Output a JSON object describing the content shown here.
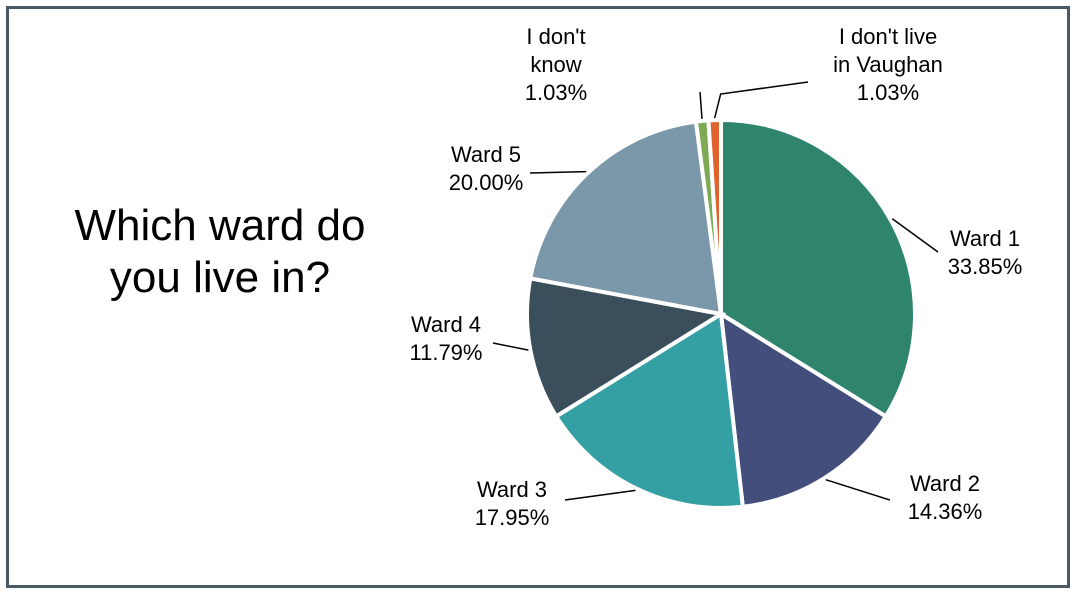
{
  "title": "Which ward do you live in?",
  "chart_data": {
    "type": "pie",
    "title": "Which ward do you live in?",
    "labels": [
      "Ward 1",
      "Ward 2",
      "Ward 3",
      "Ward 4",
      "Ward 5",
      "I don't know",
      "I don't live in Vaughan"
    ],
    "values": [
      33.85,
      14.36,
      17.95,
      11.79,
      20.0,
      1.03,
      1.03
    ],
    "value_labels": [
      "33.85%",
      "14.36%",
      "17.95%",
      "11.79%",
      "20.00%",
      "1.03%",
      "1.03%"
    ],
    "colors": [
      "#2e846d",
      "#434e7d",
      "#35a0a4",
      "#3a4e5c",
      "#7b98ab",
      "#7eaa55",
      "#e0622c"
    ],
    "legend": "none"
  }
}
